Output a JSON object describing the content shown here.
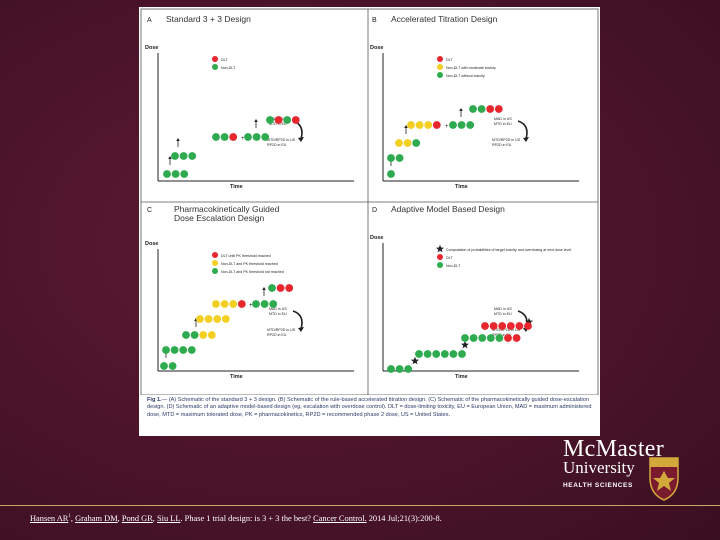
{
  "panels": [
    {
      "letter": "A",
      "title_lines": [
        "Standard 3 + 3 Design"
      ],
      "y_label": "Dose",
      "x_label": "Time",
      "legend": [
        "DLT",
        "Non-DLT"
      ],
      "annotations": [
        "MAD in US",
        "MTD in EU",
        "MTD/RP2D in US",
        "RP2D in EU"
      ]
    },
    {
      "letter": "B",
      "title_lines": [
        "Accelerated Titration Design"
      ],
      "y_label": "Dose",
      "x_label": "Time",
      "legend": [
        "DLT",
        "Non-DLT with moderate toxicity",
        "Non-DLT without toxicity"
      ],
      "annotations": [
        "MAD in US",
        "MTD in EU",
        "MTD/RP2D in US",
        "RP2D in EU"
      ]
    },
    {
      "letter": "C",
      "title_lines": [
        "Pharmacokinetically Guided",
        "Dose Escalation Design"
      ],
      "y_label": "Dose",
      "x_label": "Time",
      "legend": [
        "DLT until PK threshold reached",
        "Non-DLT and PK threshold reached",
        "Non-DLT and PK threshold not reached"
      ],
      "annotations": [
        "MAD in US",
        "MTD in EU",
        "MTD/RP2D in US",
        "RP2D in EU"
      ]
    },
    {
      "letter": "D",
      "title_lines": [
        "Adaptive Model Based Design"
      ],
      "y_label": "Dose",
      "x_label": "Time",
      "legend": [
        "Computation of probabilities of target toxicity and overdosing at next dose level",
        "DLT",
        "Non-DLT"
      ],
      "annotations": [
        "MAD in US",
        "MTD in EU",
        "MTD/RP2D in US",
        "RP2D in EU"
      ]
    }
  ],
  "caption": {
    "label": "Fig 1.",
    "text": "— (A) Schematic of the standard 3 + 3 design. (B) Schematic of the rule-based accelerated titration design. (C) Schematic of the pharmacokinetically guided dose-escalation design. (D) Schematic of an adaptive model-based design (eg, escalation with overdose control). DLT = dose-limiting toxicity, EU = European Union, MAD = maximum administered dose, MTD = maximum tolerated dose, PK = pharmacokinetics, RP2D = recommended phase 2 dose, US = United States."
  },
  "logo": {
    "name": "McMaster",
    "university": "University",
    "faculty": "HEALTH SCIENCES"
  },
  "citation": {
    "authors": [
      {
        "text": "Hansen AR",
        "sup": "1"
      },
      {
        "text": "Graham DM"
      },
      {
        "text": "Pond GR"
      },
      {
        "text": "Siu LL"
      }
    ],
    "title": "Phase 1 trial design: is 3 + 3 the best?",
    "journal": "Cancer Control.",
    "details": "2014 Jul;21(3):200-8."
  },
  "colors": {
    "dlt": "#e8262e",
    "nondlt": "#2eab4f",
    "moderate": "#f2cf21",
    "background": "#4b1429",
    "accent_line": "#c9a86a"
  }
}
